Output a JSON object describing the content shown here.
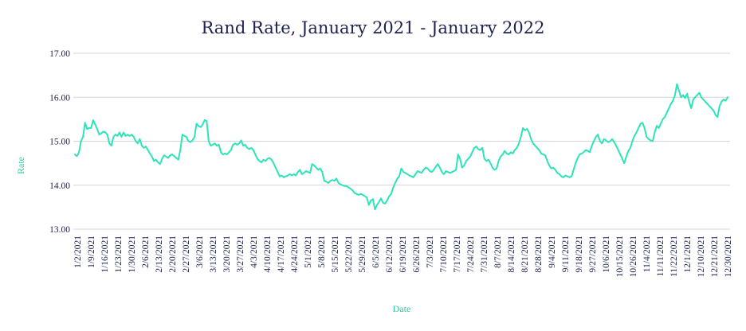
{
  "chart_data": {
    "type": "line",
    "title": "Rand Rate, January 2021 - January 2022",
    "xlabel": "Date",
    "ylabel": "Rate",
    "ylim": [
      13.0,
      17.0
    ],
    "yticks": [
      "13.00",
      "14.00",
      "15.00",
      "16.00",
      "17.00"
    ],
    "grid": true,
    "legend": "none",
    "line_color": "#2de3b8",
    "x_tick_labels": [
      "1/2/2021",
      "1/9/2021",
      "1/16/2021",
      "1/23/2021",
      "1/30/2021",
      "2/6/2021",
      "2/13/2021",
      "2/20/2021",
      "2/27/2021",
      "3/6/2021",
      "3/13/2021",
      "3/20/2021",
      "3/27/2021",
      "4/3/2021",
      "4/10/2021",
      "4/17/2021",
      "4/24/2021",
      "5/1/2021",
      "5/8/2021",
      "5/15/2021",
      "5/22/2021",
      "5/29/2021",
      "6/5/2021",
      "6/12/2021",
      "6/19/2021",
      "6/26/2021",
      "7/3/2021",
      "7/10/2021",
      "7/17/2021",
      "7/24/2021",
      "7/31/2021",
      "8/7/2021",
      "8/14/2021",
      "8/21/2021",
      "8/28/2021",
      "9/4/2021",
      "9/11/2021",
      "9/18/2021",
      "9/27/2021",
      "10/6/2021",
      "10/15/2021",
      "10/26/2021",
      "11/4/2021",
      "11/11/2021",
      "11/22/2021",
      "12/1/2021",
      "12/10/2021",
      "12/21/2021",
      "12/30/2021"
    ],
    "series": [
      {
        "values": [
          14.7,
          14.66,
          14.75,
          15.0,
          15.1,
          15.42,
          15.28,
          15.3,
          15.3,
          15.48,
          15.38,
          15.28,
          15.15,
          15.18,
          15.22,
          15.2,
          15.15,
          14.95,
          14.9,
          15.1,
          15.15,
          15.12,
          15.2,
          15.1,
          15.2,
          15.12,
          15.15,
          15.12,
          15.15,
          15.1,
          15.0,
          14.95,
          15.05,
          14.9,
          14.85,
          14.88,
          14.8,
          14.72,
          14.65,
          14.55,
          14.58,
          14.52,
          14.48,
          14.6,
          14.68,
          14.65,
          14.62,
          14.68,
          14.7,
          14.66,
          14.62,
          14.58,
          14.8,
          15.15,
          15.12,
          15.1,
          15.0,
          14.98,
          15.02,
          15.1,
          15.4,
          15.35,
          15.32,
          15.38,
          15.48,
          15.46,
          15.0,
          14.9,
          14.92,
          14.95,
          14.9,
          14.92,
          14.75,
          14.7,
          14.72,
          14.7,
          14.75,
          14.8,
          14.92,
          14.95,
          14.92,
          14.95,
          15.02,
          14.9,
          14.92,
          14.85,
          14.82,
          14.85,
          14.8,
          14.7,
          14.6,
          14.55,
          14.52,
          14.58,
          14.55,
          14.6,
          14.62,
          14.58,
          14.5,
          14.4,
          14.3,
          14.2,
          14.22,
          14.18,
          14.2,
          14.22,
          14.25,
          14.22,
          14.25,
          14.22,
          14.3,
          14.35,
          14.25,
          14.28,
          14.32,
          14.3,
          14.28,
          14.48,
          14.45,
          14.4,
          14.35,
          14.38,
          14.3,
          14.1,
          14.08,
          14.05,
          14.1,
          14.12,
          14.1,
          14.15,
          14.05,
          14.02,
          14.0,
          13.98,
          13.98,
          13.95,
          13.92,
          13.88,
          13.82,
          13.8,
          13.78,
          13.8,
          13.78,
          13.75,
          13.72,
          13.55,
          13.65,
          13.68,
          13.45,
          13.55,
          13.62,
          13.7,
          13.6,
          13.58,
          13.65,
          13.75,
          13.8,
          13.95,
          14.05,
          14.15,
          14.2,
          14.38,
          14.3,
          14.28,
          14.25,
          14.22,
          14.2,
          14.18,
          14.25,
          14.32,
          14.3,
          14.28,
          14.35,
          14.4,
          14.38,
          14.32,
          14.3,
          14.35,
          14.42,
          14.48,
          14.4,
          14.3,
          14.25,
          14.32,
          14.3,
          14.28,
          14.3,
          14.32,
          14.35,
          14.7,
          14.6,
          14.4,
          14.45,
          14.55,
          14.6,
          14.65,
          14.75,
          14.85,
          14.88,
          14.82,
          14.8,
          14.85,
          14.6,
          14.55,
          14.58,
          14.5,
          14.4,
          14.35,
          14.38,
          14.55,
          14.65,
          14.7,
          14.78,
          14.72,
          14.7,
          14.75,
          14.72,
          14.8,
          14.85,
          14.95,
          15.1,
          15.3,
          15.25,
          15.28,
          15.2,
          15.05,
          14.95,
          14.9,
          14.85,
          14.8,
          14.72,
          14.7,
          14.68,
          14.55,
          14.45,
          14.38,
          14.4,
          14.35,
          14.28,
          14.25,
          14.2,
          14.18,
          14.22,
          14.2,
          14.18,
          14.2,
          14.35,
          14.5,
          14.62,
          14.7,
          14.72,
          14.75,
          14.8,
          14.78,
          14.75,
          14.9,
          15.0,
          15.1,
          15.15,
          15.0,
          14.95,
          15.05,
          15.02,
          14.98,
          15.0,
          15.05,
          14.98,
          14.9,
          14.8,
          14.7,
          14.6,
          14.5,
          14.65,
          14.78,
          14.85,
          15.0,
          15.12,
          15.2,
          15.3,
          15.4,
          15.42,
          15.3,
          15.1,
          15.05,
          15.02,
          15.0,
          15.2,
          15.35,
          15.3,
          15.4,
          15.5,
          15.55,
          15.65,
          15.75,
          15.85,
          15.92,
          16.05,
          16.3,
          16.15,
          16.0,
          16.05,
          15.98,
          16.08,
          15.9,
          15.75,
          15.95,
          16.0,
          16.05,
          16.1,
          16.0,
          15.95,
          15.9,
          15.85,
          15.8,
          15.75,
          15.7,
          15.6,
          15.55,
          15.8,
          15.9,
          15.95,
          15.92,
          16.0
        ]
      }
    ]
  }
}
